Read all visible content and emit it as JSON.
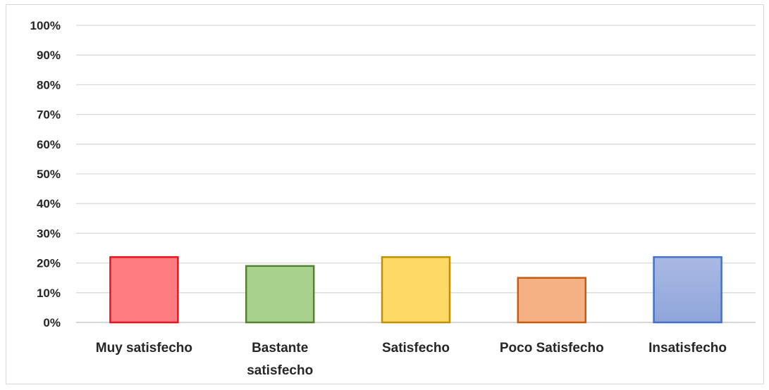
{
  "chart_data": {
    "type": "bar",
    "title": "",
    "xlabel": "",
    "ylabel": "",
    "ylim": [
      0,
      100
    ],
    "yticks": [
      "0%",
      "10%",
      "20%",
      "30%",
      "40%",
      "50%",
      "60%",
      "70%",
      "80%",
      "90%",
      "100%"
    ],
    "grid": true,
    "legend": "none",
    "categories": [
      [
        "Muy satisfecho"
      ],
      [
        "Bastante",
        "satisfecho"
      ],
      [
        "Satisfecho"
      ],
      [
        "Poco Satisfecho"
      ],
      [
        "Insatisfecho"
      ]
    ],
    "values": [
      22,
      19,
      22,
      15,
      22
    ],
    "bar_fill_top": [
      "#ff7c80",
      "#a9d18e",
      "#ffd966",
      "#f4b183",
      "#a9b9e3"
    ],
    "bar_fill_bottom": [
      "#ff7c80",
      "#a9d18e",
      "#ffd966",
      "#f4b183",
      "#8fa5da"
    ],
    "bar_stroke": [
      "#e8141e",
      "#548235",
      "#bf9000",
      "#c55a11",
      "#4472c4"
    ]
  }
}
